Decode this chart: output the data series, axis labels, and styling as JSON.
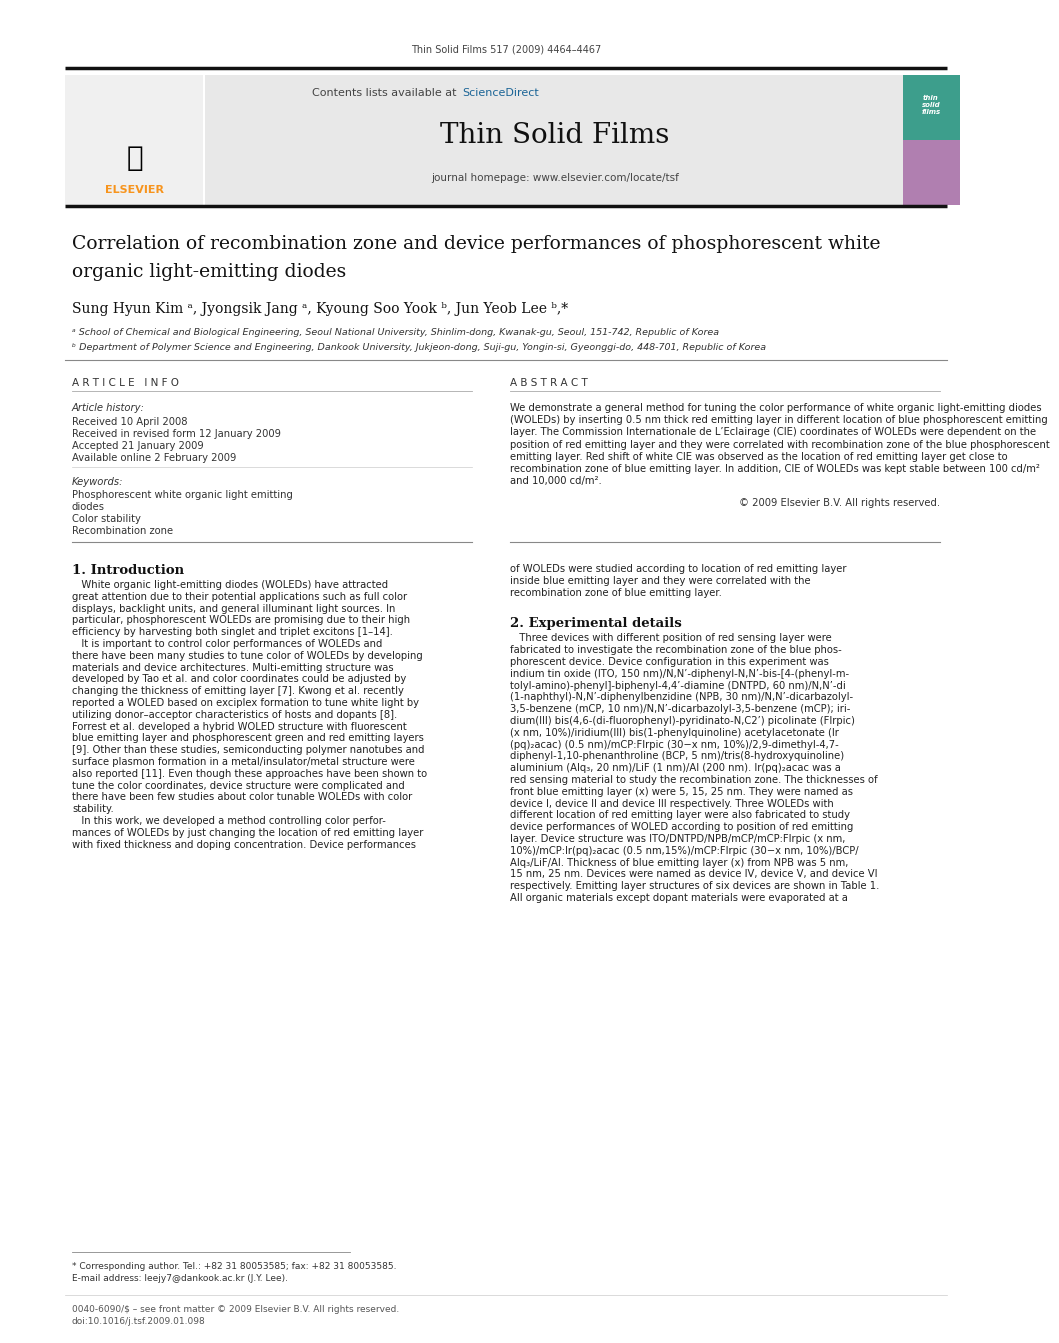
{
  "page_width": 9.92,
  "page_height": 13.23,
  "bg_color": "#ffffff",
  "top_journal_line": "Thin Solid Films 517 (2009) 4464–4467",
  "journal_name": "Thin Solid Films",
  "contents_line": "Contents lists available at ScienceDirect",
  "journal_homepage": "journal homepage: www.elsevier.com/locate/tsf",
  "sciencedirect_color": "#1a6496",
  "header_bg": "#e8e8e8",
  "elsevier_text": "ELSEVIER",
  "elsevier_color": "#f7941d",
  "paper_title_line1": "Correlation of recombination zone and device performances of phosphorescent white",
  "paper_title_line2": "organic light-emitting diodes",
  "authors": "Sung Hyun Kim ᵃ, Jyongsik Jang ᵃ, Kyoung Soo Yook ᵇ, Jun Yeob Lee ᵇ,*",
  "affil_a": "ᵃ School of Chemical and Biological Engineering, Seoul National University, Shinlim-dong, Kwanak-gu, Seoul, 151-742, Republic of Korea",
  "affil_b": "ᵇ Department of Polymer Science and Engineering, Dankook University, Jukjeon-dong, Suji-gu, Yongin-si, Gyeonggi-do, 448-701, Republic of Korea",
  "article_info_header": "A R T I C L E   I N F O",
  "abstract_header": "A B S T R A C T",
  "article_history_label": "Article history:",
  "received": "Received 10 April 2008",
  "received_revised": "Received in revised form 12 January 2009",
  "accepted": "Accepted 21 January 2009",
  "available": "Available online 2 February 2009",
  "keywords_label": "Keywords:",
  "keyword1": "Phosphorescent white organic light emitting",
  "keyword1b": "diodes",
  "keyword2": "Color stability",
  "keyword3": "Recombination zone",
  "abstract_lines": [
    "We demonstrate a general method for tuning the color performance of white organic light-emitting diodes",
    "(WOLEDs) by inserting 0.5 nm thick red emitting layer in different location of blue phosphorescent emitting",
    "layer. The Commission Internationale de L’Eclairage (CIE) coordinates of WOLEDs were dependent on the",
    "position of red emitting layer and they were correlated with recombination zone of the blue phosphorescent",
    "emitting layer. Red shift of white CIE was observed as the location of red emitting layer get close to",
    "recombination zone of blue emitting layer. In addition, CIE of WOLEDs was kept stable between 100 cd/m²",
    "and 10,000 cd/m²."
  ],
  "copyright": "© 2009 Elsevier B.V. All rights reserved.",
  "section1_header": "1. Introduction",
  "intro_col1_lines": [
    "   White organic light-emitting diodes (WOLEDs) have attracted",
    "great attention due to their potential applications such as full color",
    "displays, backlight units, and general illuminant light sources. In",
    "particular, phosphorescent WOLEDs are promising due to their high",
    "efficiency by harvesting both singlet and triplet excitons [1–14].",
    "   It is important to control color performances of WOLEDs and",
    "there have been many studies to tune color of WOLEDs by developing",
    "materials and device architectures. Multi-emitting structure was",
    "developed by Tao et al. and color coordinates could be adjusted by",
    "changing the thickness of emitting layer [7]. Kwong et al. recently",
    "reported a WOLED based on exciplex formation to tune white light by",
    "utilizing donor–acceptor characteristics of hosts and dopants [8].",
    "Forrest et al. developed a hybrid WOLED structure with fluorescent",
    "blue emitting layer and phosphorescent green and red emitting layers",
    "[9]. Other than these studies, semiconducting polymer nanotubes and",
    "surface plasmon formation in a metal/insulator/metal structure were",
    "also reported [11]. Even though these approaches have been shown to",
    "tune the color coordinates, device structure were complicated and",
    "there have been few studies about color tunable WOLEDs with color",
    "stability.",
    "   In this work, we developed a method controlling color perfor-",
    "mances of WOLEDs by just changing the location of red emitting layer",
    "with fixed thickness and doping concentration. Device performances"
  ],
  "intro_col2_cont_lines": [
    "of WOLEDs were studied according to location of red emitting layer",
    "inside blue emitting layer and they were correlated with the",
    "recombination zone of blue emitting layer."
  ],
  "section2_header": "2. Experimental details",
  "exp_col2_lines": [
    "   Three devices with different position of red sensing layer were",
    "fabricated to investigate the recombination zone of the blue phos-",
    "phorescent device. Device configuration in this experiment was",
    "indium tin oxide (ITO, 150 nm)/N,N’-diphenyl-N,N’-bis-[4-(phenyl-m-",
    "tolyl-amino)-phenyl]-biphenyl-4,4’-diamine (DNTPD, 60 nm)/N,N’-di",
    "(1-naphthyl)-N,N’-diphenylbenzidine (NPB, 30 nm)/N,N’-dicarbazolyl-",
    "3,5-benzene (mCP, 10 nm)/N,N’-dicarbazolyl-3,5-benzene (mCP); iri-",
    "dium(III) bis(4,6-(di-fluorophenyl)-pyridinato-N,C2’) picolinate (Flrpic)",
    "(x nm, 10%)/iridium(III) bis(1-phenylquinoline) acetylacetonate (Ir",
    "(pq)₂acac) (0.5 nm)/mCP:Flrpic (30−x nm, 10%)/2,9-dimethyl-4,7-",
    "diphenyl-1,10-phenanthroline (BCP, 5 nm)/tris(8-hydroxyquinoline)",
    "aluminium (Alq₃, 20 nm)/LiF (1 nm)/Al (200 nm). Ir(pq)₂acac was a",
    "red sensing material to study the recombination zone. The thicknesses of",
    "front blue emitting layer (x) were 5, 15, 25 nm. They were named as",
    "device I, device II and device III respectively. Three WOLEDs with",
    "different location of red emitting layer were also fabricated to study",
    "device performances of WOLED according to position of red emitting",
    "layer. Device structure was ITO/DNTPD/NPB/mCP/mCP:Flrpic (x nm,",
    "10%)/mCP:Ir(pq)₂acac (0.5 nm,15%)/mCP:Flrpic (30−x nm, 10%)/BCP/",
    "Alq₃/LiF/Al. Thickness of blue emitting layer (x) from NPB was 5 nm,",
    "15 nm, 25 nm. Devices were named as device IV, device V, and device VI",
    "respectively. Emitting layer structures of six devices are shown in Table 1.",
    "All organic materials except dopant materials were evaporated at a"
  ],
  "footnote_star": "* Corresponding author. Tel.: +82 31 80053585; fax: +82 31 80053585.",
  "footnote_email": "E-mail address: leejy7@dankook.ac.kr (J.Y. Lee).",
  "footer_left": "0040-6090/$ – see front matter © 2009 Elsevier B.V. All rights reserved.",
  "footer_doi": "doi:10.1016/j.tsf.2009.01.098"
}
